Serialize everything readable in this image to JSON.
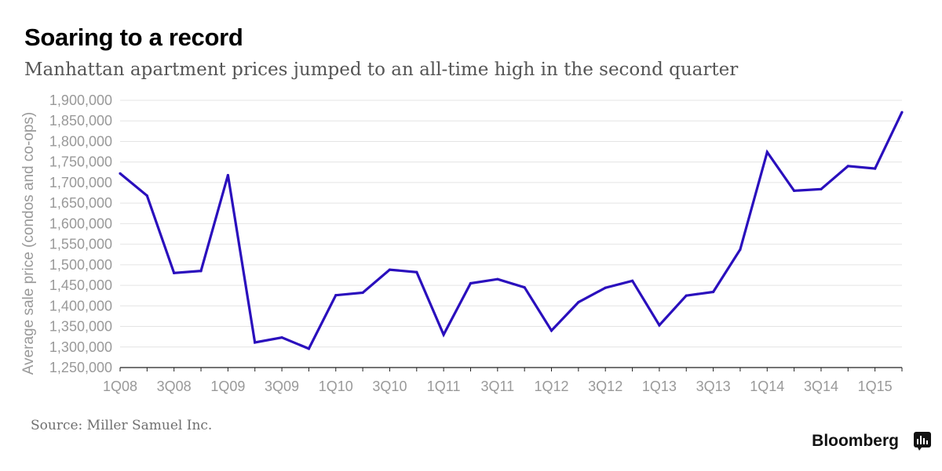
{
  "header": {
    "title": "Soaring to a record",
    "subtitle": "Manhattan apartment prices jumped to an all-time high in the second quarter"
  },
  "footer": {
    "source": "Source: Miller Samuel Inc.",
    "brand": "Bloomberg"
  },
  "colors": {
    "line": "#2a0fbd",
    "grid": "#e4e4e4",
    "axis_text": "#999999"
  },
  "icons": {
    "brand_logo": "bloomberg-terminal-icon"
  },
  "chart_data": {
    "type": "line",
    "title": "Soaring to a record",
    "subtitle": "Manhattan apartment prices jumped to an all-time high in the second quarter",
    "ylabel": "Average sale price (condos and co-ops)",
    "xlabel": "",
    "ylim": [
      1250000,
      1900000
    ],
    "yticks": [
      1250000,
      1300000,
      1350000,
      1400000,
      1450000,
      1500000,
      1550000,
      1600000,
      1650000,
      1700000,
      1750000,
      1800000,
      1850000,
      1900000
    ],
    "ytick_labels": [
      "1,250,000",
      "1,300,000",
      "1,350,000",
      "1,400,000",
      "1,450,000",
      "1,500,000",
      "1,550,000",
      "1,600,000",
      "1,650,000",
      "1,700,000",
      "1,750,000",
      "1,800,000",
      "1,850,000",
      "1,900,000"
    ],
    "xtick_labels": [
      "1Q08",
      "3Q08",
      "1Q09",
      "3Q09",
      "1Q10",
      "3Q10",
      "1Q11",
      "3Q11",
      "1Q12",
      "3Q12",
      "1Q13",
      "3Q13",
      "1Q14",
      "3Q14",
      "1Q15"
    ],
    "grid": true,
    "x": [
      "1Q08",
      "2Q08",
      "3Q08",
      "4Q08",
      "1Q09",
      "2Q09",
      "3Q09",
      "4Q09",
      "1Q10",
      "2Q10",
      "3Q10",
      "4Q10",
      "1Q11",
      "2Q11",
      "3Q11",
      "4Q11",
      "1Q12",
      "2Q12",
      "3Q12",
      "4Q12",
      "1Q13",
      "2Q13",
      "3Q13",
      "4Q13",
      "1Q14",
      "2Q14",
      "3Q14",
      "4Q14",
      "1Q15",
      "2Q15"
    ],
    "series": [
      {
        "values": [
          1722000,
          1668000,
          1480000,
          1485000,
          1718000,
          1311000,
          1323000,
          1296000,
          1426000,
          1432000,
          1488000,
          1482000,
          1330000,
          1455000,
          1465000,
          1445000,
          1340000,
          1409000,
          1444000,
          1461000,
          1353000,
          1425000,
          1434000,
          1537000,
          1774000,
          1680000,
          1684000,
          1740000,
          1734000,
          1871000
        ]
      }
    ]
  }
}
